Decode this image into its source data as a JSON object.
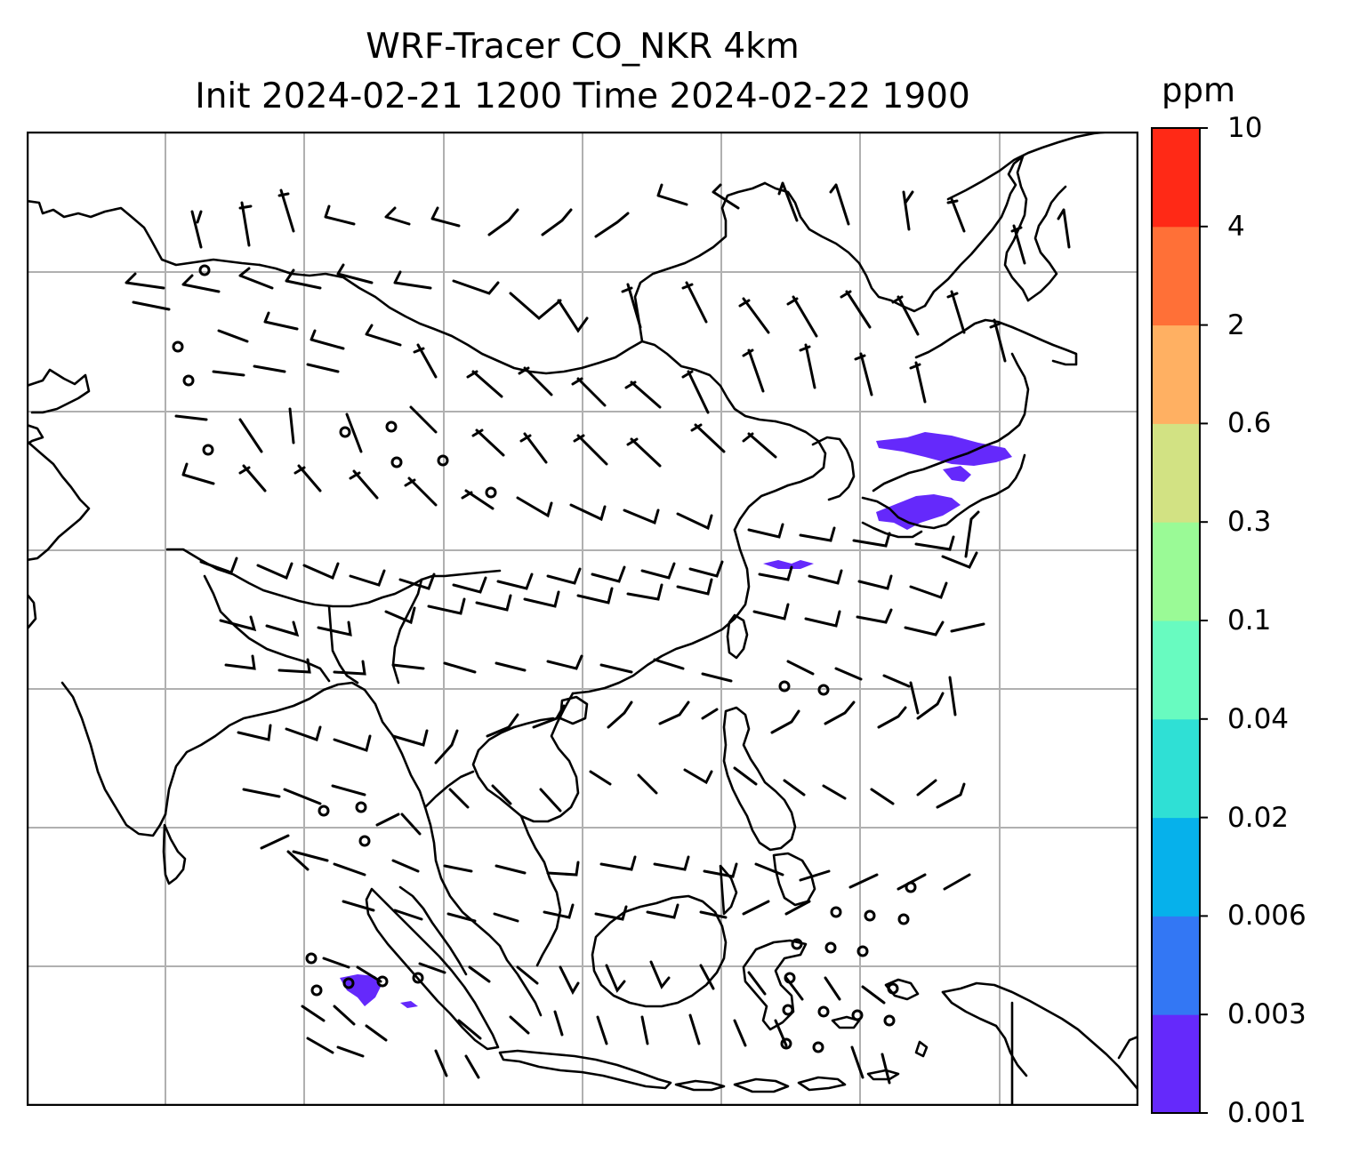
{
  "title_line1": "WRF-Tracer CO_NKR 4km",
  "title_line2": "Init 2024-02-21 1200 Time 2024-02-22 1900",
  "colorbar": {
    "unit": "ppm",
    "levels": [
      "0.001",
      "0.003",
      "0.006",
      "0.02",
      "0.04",
      "0.1",
      "0.3",
      "0.6",
      "2",
      "4",
      "10"
    ],
    "colors": [
      "#6529fb",
      "#3377f4",
      "#06b1eb",
      "#2fe0d5",
      "#68fbc0",
      "#9afa96",
      "#d2e283",
      "#ffb062",
      "#ff7037",
      "#ff2916"
    ]
  },
  "map": {
    "grid": "on",
    "coastline_color": "#000000",
    "tracer_color": "#6529fb",
    "wind_barbs": "black"
  }
}
